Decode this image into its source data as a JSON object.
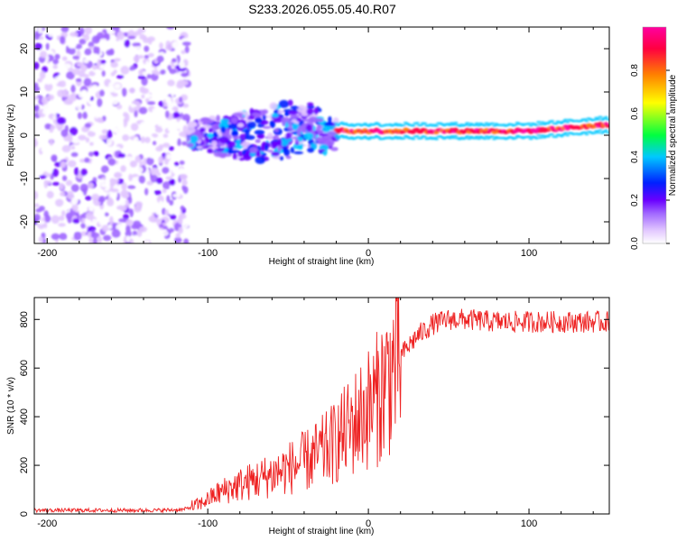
{
  "figure": {
    "title": "S233.2026.055.05.40.R07"
  },
  "chart_data": [
    {
      "type": "heatmap",
      "xlabel": "Height of straight line (km)",
      "ylabel": "Frequency (Hz)",
      "xlim": [
        -208,
        150
      ],
      "ylim": [
        -25,
        25
      ],
      "x_ticks": [
        -200,
        -100,
        0,
        100
      ],
      "x_tick_labels": [
        "-200",
        "-100",
        "0",
        "100"
      ],
      "y_ticks": [
        -20,
        -10,
        0,
        10,
        20
      ],
      "y_tick_labels": [
        "-20",
        "-10",
        "0",
        "10",
        "20"
      ],
      "colorbar": {
        "label": "Normalized spectral amplitude",
        "range": [
          0,
          1
        ],
        "ticks": [
          0.0,
          0.2,
          0.4,
          0.6,
          0.8
        ],
        "tick_labels": [
          "0.0",
          "0.2",
          "0.4",
          "0.6",
          "0.8"
        ],
        "colormap": [
          "#ffffff",
          "#e2c8ff",
          "#a066ff",
          "#6a00ff",
          "#0020ff",
          "#00c8ff",
          "#00ff40",
          "#ffff00",
          "#ff8000",
          "#ff0040",
          "#ff00a0"
        ]
      },
      "regions": [
        {
          "description": "scattered noise",
          "x_range": [
            -208,
            -112
          ],
          "freq_range": [
            -25,
            25
          ],
          "amplitude_range": [
            0.0,
            0.25
          ]
        },
        {
          "description": "broad echo cluster",
          "x_range": [
            -112,
            -20
          ],
          "freq_center": 0,
          "amplitude_range": [
            0.1,
            0.5
          ]
        },
        {
          "description": "narrow stable line",
          "x_range": [
            -20,
            150
          ],
          "freq_center": 1,
          "amplitude_range": [
            0.8,
            1.0
          ]
        }
      ]
    },
    {
      "type": "line",
      "xlabel": "Height of straight line (km)",
      "ylabel": "SNR (10 * v/v)",
      "xlim": [
        -208,
        150
      ],
      "ylim": [
        0,
        890
      ],
      "x_ticks": [
        -200,
        -100,
        0,
        100
      ],
      "x_tick_labels": [
        "-200",
        "-100",
        "0",
        "100"
      ],
      "y_ticks": [
        0,
        200,
        400,
        600,
        800
      ],
      "y_tick_labels": [
        "0",
        "200",
        "400",
        "600",
        "800"
      ],
      "series": [
        {
          "name": "SNR",
          "color": "#ee2222",
          "x": [
            -208,
            -180,
            -150,
            -130,
            -115,
            -105,
            -95,
            -85,
            -75,
            -65,
            -55,
            -45,
            -35,
            -25,
            -15,
            -5,
            5,
            12,
            20,
            30,
            40,
            50,
            60,
            80,
            100,
            120,
            140,
            150
          ],
          "y": [
            15,
            15,
            15,
            15,
            18,
            40,
            80,
            110,
            130,
            150,
            175,
            200,
            230,
            270,
            330,
            400,
            470,
            560,
            650,
            730,
            780,
            800,
            800,
            790,
            790,
            790,
            790,
            790
          ]
        }
      ]
    }
  ]
}
